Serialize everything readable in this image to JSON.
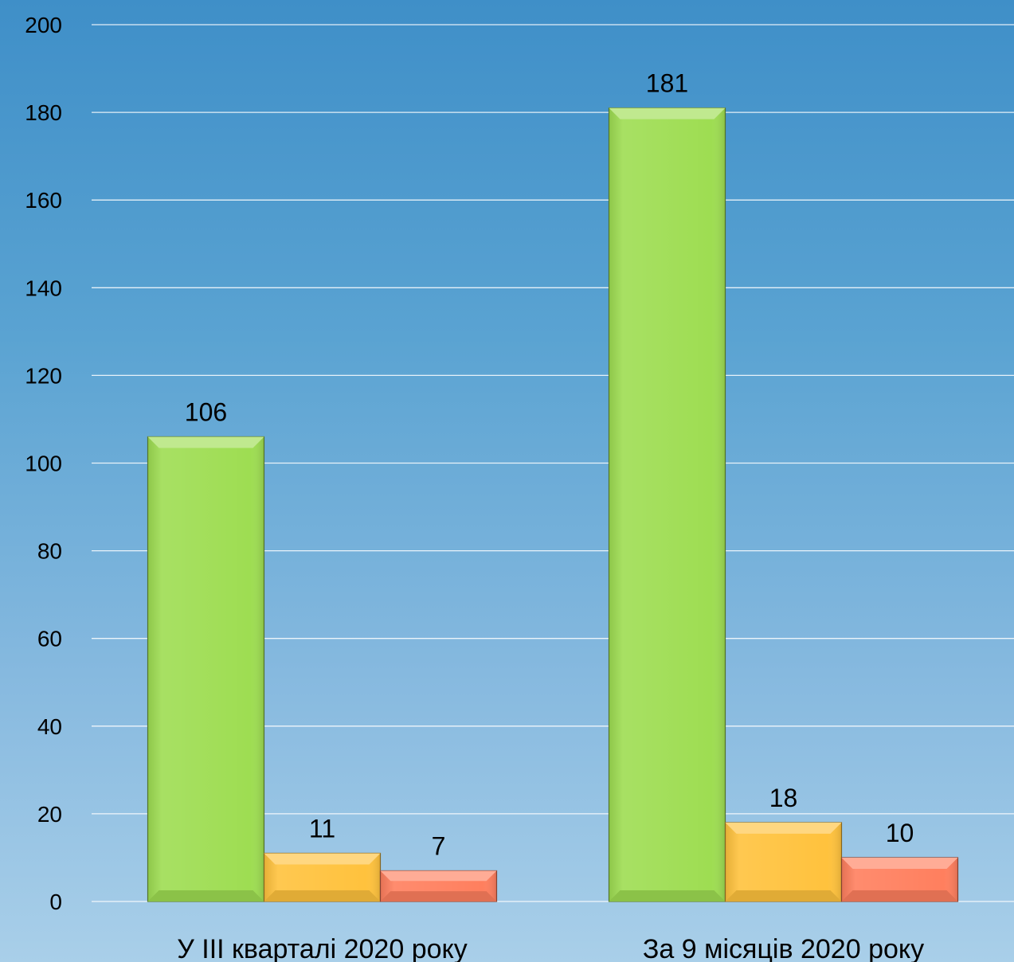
{
  "chart_data": {
    "type": "bar",
    "categories": [
      "У ІІІ кварталі 2020 року",
      "За 9 місяців 2020 року"
    ],
    "series": [
      {
        "values": [
          106,
          181
        ],
        "color": "#9edd52"
      },
      {
        "values": [
          11,
          18
        ],
        "color": "#ffc23d"
      },
      {
        "values": [
          7,
          10
        ],
        "color": "#ff7f5e"
      }
    ],
    "ylim": [
      0,
      200
    ],
    "yticks": [
      0,
      20,
      40,
      60,
      80,
      100,
      120,
      140,
      160,
      180,
      200
    ],
    "grid": true,
    "data_labels": true,
    "xlabel": "",
    "ylabel": ""
  }
}
